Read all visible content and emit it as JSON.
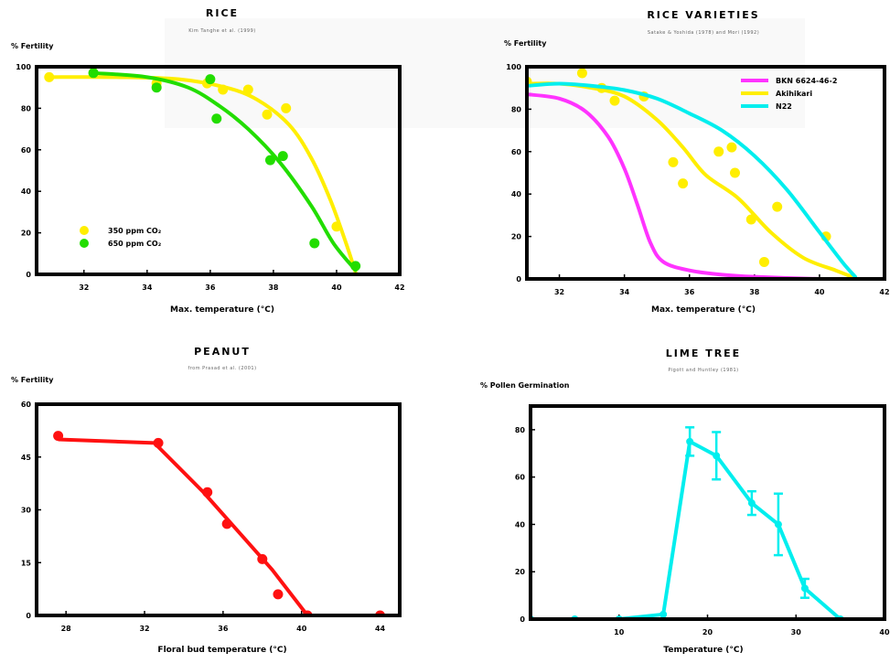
{
  "chart_data": [
    {
      "id": "rice",
      "type": "scatter",
      "title": "RICE",
      "subtitle": "Kim Tanghe et al. (1999)",
      "ylabel": "% Fertility",
      "xlabel": "Max. temperature (°C)",
      "xlim": [
        30.5,
        42
      ],
      "ylim": [
        0,
        100
      ],
      "xticks": [
        32,
        34,
        36,
        38,
        40,
        42
      ],
      "yticks": [
        0,
        20,
        40,
        60,
        80,
        100
      ],
      "legend_position": "lower-left",
      "series": [
        {
          "name": "350 ppm CO₂",
          "color": "#ffee00",
          "points": [
            [
              30.9,
              95
            ],
            [
              32.3,
              97
            ],
            [
              34.3,
              92
            ],
            [
              35.9,
              92
            ],
            [
              36.4,
              89
            ],
            [
              37.2,
              89
            ],
            [
              37.8,
              77
            ],
            [
              38.4,
              80
            ],
            [
              40.0,
              23
            ]
          ],
          "curve": [
            [
              30.9,
              95
            ],
            [
              33,
              95
            ],
            [
              35,
              94
            ],
            [
              36.5,
              90
            ],
            [
              37.5,
              84
            ],
            [
              38.5,
              72
            ],
            [
              39.2,
              56
            ],
            [
              39.8,
              36
            ],
            [
              40.3,
              15
            ],
            [
              40.6,
              1
            ]
          ]
        },
        {
          "name": "650 ppm CO₂",
          "color": "#22dd00",
          "points": [
            [
              32.3,
              97
            ],
            [
              34.3,
              90
            ],
            [
              36.0,
              94
            ],
            [
              36.2,
              75
            ],
            [
              37.9,
              55
            ],
            [
              38.3,
              57
            ],
            [
              39.3,
              15
            ],
            [
              40.6,
              4
            ]
          ],
          "curve": [
            [
              32.3,
              97
            ],
            [
              34,
              95
            ],
            [
              35.3,
              90
            ],
            [
              36.3,
              81
            ],
            [
              37.2,
              70
            ],
            [
              38.2,
              54
            ],
            [
              39.2,
              33
            ],
            [
              39.9,
              15
            ],
            [
              40.6,
              2
            ]
          ]
        }
      ]
    },
    {
      "id": "rice-varieties",
      "type": "scatter",
      "title": "RICE VARIETIES",
      "subtitle": "Satake & Yoshida (1978) and Mori (1992)",
      "ylabel": "% Fertility",
      "xlabel": "Max. temperature (°C)",
      "xlim": [
        31,
        42
      ],
      "ylim": [
        0,
        100
      ],
      "xticks": [
        32,
        34,
        36,
        38,
        40,
        42
      ],
      "yticks": [
        0,
        20,
        40,
        60,
        80,
        100
      ],
      "legend_position": "top-right",
      "series": [
        {
          "name": "BKN 6624-46-2",
          "color": "#ff33ff",
          "points": [],
          "curve": [
            [
              31,
              87
            ],
            [
              32,
              85
            ],
            [
              32.8,
              79
            ],
            [
              33.5,
              67
            ],
            [
              34,
              52
            ],
            [
              34.4,
              35
            ],
            [
              34.8,
              17
            ],
            [
              35.2,
              8
            ],
            [
              36,
              4
            ],
            [
              37,
              2
            ],
            [
              38,
              1
            ],
            [
              40,
              0
            ],
            [
              41,
              0
            ]
          ]
        },
        {
          "name": "Akihikari",
          "color": "#ffee00",
          "points": [
            [
              31.0,
              93
            ],
            [
              32.7,
              97
            ],
            [
              33.3,
              90
            ],
            [
              33.7,
              84
            ],
            [
              34.6,
              86
            ],
            [
              35.5,
              55
            ],
            [
              35.8,
              45
            ],
            [
              36.9,
              60
            ],
            [
              37.3,
              62
            ],
            [
              37.4,
              50
            ],
            [
              37.9,
              28
            ],
            [
              38.3,
              8
            ],
            [
              38.7,
              34
            ],
            [
              40.2,
              20
            ]
          ],
          "curve": [
            [
              31,
              92
            ],
            [
              32,
              92
            ],
            [
              33,
              90
            ],
            [
              34,
              86
            ],
            [
              35,
              75
            ],
            [
              35.8,
              62
            ],
            [
              36.5,
              49
            ],
            [
              37.5,
              38
            ],
            [
              38.5,
              22
            ],
            [
              39.5,
              10
            ],
            [
              40.5,
              4
            ],
            [
              41,
              1
            ]
          ]
        },
        {
          "name": "N22",
          "color": "#00eeee",
          "points": [],
          "curve": [
            [
              31,
              91
            ],
            [
              32,
              92
            ],
            [
              33,
              91
            ],
            [
              34,
              89
            ],
            [
              35,
              85
            ],
            [
              36,
              78
            ],
            [
              37,
              70
            ],
            [
              38,
              58
            ],
            [
              39,
              42
            ],
            [
              40,
              22
            ],
            [
              40.7,
              8
            ],
            [
              41.1,
              1
            ]
          ]
        }
      ]
    },
    {
      "id": "peanut",
      "type": "line",
      "title": "PEANUT",
      "subtitle": "from Prasad et al. (2001)",
      "ylabel": "% Fertility",
      "xlabel": "Floral bud temperature (°C)",
      "xlim": [
        26.5,
        45
      ],
      "ylim": [
        0,
        60
      ],
      "xticks": [
        28,
        32,
        36,
        40,
        44
      ],
      "yticks": [
        0,
        15,
        30,
        45,
        60
      ],
      "ytick_labels": [
        "0",
        "15",
        "30",
        "45",
        "60"
      ],
      "series": [
        {
          "name": "",
          "color": "#ff1111",
          "points": [
            [
              27.6,
              51
            ],
            [
              32.7,
              49
            ],
            [
              35.2,
              35
            ],
            [
              36.2,
              26
            ],
            [
              38,
              16
            ],
            [
              38.8,
              6
            ],
            [
              40.3,
              0
            ],
            [
              44,
              0
            ]
          ],
          "curve": [
            [
              27.6,
              50
            ],
            [
              32.5,
              49
            ],
            [
              35,
              35
            ],
            [
              38.5,
              13
            ],
            [
              40.3,
              0
            ],
            [
              44,
              0
            ]
          ]
        }
      ]
    },
    {
      "id": "lime-tree",
      "type": "line",
      "title": "LIME TREE",
      "subtitle": "Pigott and Huntley (1981)",
      "ylabel": "% Pollen Germination",
      "xlabel": "Temperature (°C)",
      "xlim": [
        0,
        40
      ],
      "ylim": [
        0,
        90
      ],
      "xticks": [
        10,
        20,
        30,
        40
      ],
      "yticks": [
        0,
        20,
        40,
        60,
        80
      ],
      "series": [
        {
          "name": "",
          "color": "#00eeee",
          "points": [
            [
              0,
              0
            ],
            [
              5,
              0
            ],
            [
              10,
              0
            ],
            [
              15,
              2
            ],
            [
              18,
              75
            ],
            [
              21,
              69
            ],
            [
              25,
              49
            ],
            [
              28,
              40
            ],
            [
              31,
              13
            ],
            [
              35,
              0
            ]
          ],
          "errors": [
            0,
            0,
            0,
            0,
            6,
            10,
            5,
            13,
            4,
            0
          ]
        }
      ]
    }
  ]
}
